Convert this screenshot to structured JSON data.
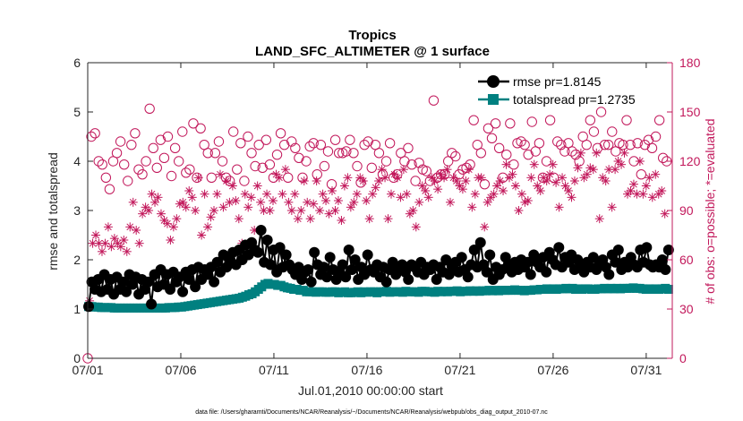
{
  "chart_data": {
    "type": "line",
    "title": "Tropics",
    "subtitle": "LAND_SFC_ALTIMETER @ 1 surface",
    "xlabel": "Jul.01,2010 00:00:00 start",
    "ylabel": "rmse and totalspread",
    "ylabel_right": "# of obs: o=possible; *=evaluated",
    "footer": "data file: /Users/gharamti/Documents/NCAR/Reanalysis/~/Documents/NCAR/Reanalysis/webpub/obs_diag_output_2010-07.nc",
    "xlim": [
      0,
      31.4
    ],
    "ylim": [
      0,
      6
    ],
    "ylim_right": [
      0,
      180
    ],
    "x_tick_values": [
      0,
      5,
      10,
      15,
      20,
      25,
      30
    ],
    "x_tick_labels": [
      "07/01",
      "07/06",
      "07/11",
      "07/16",
      "07/21",
      "07/26",
      "07/31"
    ],
    "y_ticks": [
      "0",
      "1",
      "2",
      "3",
      "4",
      "5",
      "6"
    ],
    "y_ticks_right": [
      "0",
      "30",
      "60",
      "90",
      "120",
      "150",
      "180"
    ],
    "legend_position": "top-right",
    "colors": {
      "rmse": "#000000",
      "spread": "#008080",
      "obs": "#c2185b",
      "axis": "#262626"
    },
    "series": [
      {
        "name": "rmse pr=1.8145",
        "axis": "left",
        "values": [
          1.05,
          1.55,
          1.4,
          1.6,
          1.35,
          1.7,
          1.4,
          1.6,
          1.3,
          1.65,
          1.4,
          1.55,
          1.35,
          1.7,
          1.5,
          1.65,
          1.3,
          1.6,
          1.4,
          1.55,
          1.1,
          1.7,
          1.45,
          1.8,
          1.5,
          1.7,
          1.4,
          1.75,
          1.55,
          1.65,
          1.35,
          1.75,
          1.6,
          1.8,
          1.45,
          1.85,
          1.6,
          1.8,
          1.7,
          1.85,
          1.55,
          1.95,
          1.75,
          2.1,
          1.85,
          2.0,
          2.15,
          1.9,
          2.2,
          2.0,
          2.3,
          2.1,
          2.35,
          2.2,
          2.15,
          2.6,
          1.95,
          2.4,
          1.9,
          2.2,
          1.75,
          2.25,
          1.85,
          2.1,
          1.9,
          1.8,
          1.7,
          1.85,
          1.6,
          1.75,
          1.8,
          1.55,
          2.15,
          1.9,
          1.7,
          1.85,
          1.65,
          2.05,
          1.8,
          1.6,
          1.75,
          1.9,
          1.65,
          2.2,
          1.8,
          2.0,
          1.6,
          1.85,
          1.7,
          2.1,
          1.8,
          1.75,
          1.9,
          1.65,
          1.85,
          1.55,
          1.8,
          1.95,
          1.7,
          1.85,
          1.9,
          1.75,
          1.6,
          1.9,
          1.85,
          1.75,
          1.95,
          1.7,
          1.85,
          1.8,
          1.9,
          1.6,
          1.85,
          1.75,
          2.0,
          1.7,
          1.85,
          1.95,
          1.75,
          2.05,
          1.8,
          1.65,
          1.9,
          2.2,
          1.85,
          2.35,
          1.9,
          1.75,
          2.1,
          1.6,
          1.85,
          1.7,
          1.8,
          2.05,
          1.9,
          1.75,
          1.95,
          1.8,
          2.0,
          1.85,
          1.95,
          1.7,
          2.1,
          1.95,
          1.85,
          2.05,
          1.75,
          2.15,
          2.0,
          1.9,
          2.25,
          1.85,
          2.05,
          1.95,
          2.1,
          1.8,
          2.0,
          1.9,
          1.75,
          1.95,
          1.85,
          2.05,
          1.8,
          1.9,
          2.0,
          1.85,
          1.7,
          2.1,
          1.95,
          2.2,
          1.8,
          1.95,
          1.85,
          2.05,
          1.9,
          1.85,
          2.2,
          1.95,
          2.25,
          1.9,
          1.85,
          1.9,
          1.85,
          2.0,
          1.8,
          2.2
        ]
      },
      {
        "name": "totalspread pr=1.2735",
        "axis": "left",
        "values": [
          1.05,
          1.05,
          1.04,
          1.04,
          1.03,
          1.03,
          1.03,
          1.03,
          1.02,
          1.02,
          1.02,
          1.02,
          1.02,
          1.02,
          1.02,
          1.02,
          1.02,
          1.02,
          1.02,
          1.02,
          1.02,
          1.02,
          1.02,
          1.02,
          1.02,
          1.03,
          1.03,
          1.03,
          1.04,
          1.04,
          1.05,
          1.06,
          1.07,
          1.08,
          1.09,
          1.1,
          1.11,
          1.12,
          1.13,
          1.14,
          1.15,
          1.16,
          1.17,
          1.18,
          1.19,
          1.2,
          1.21,
          1.22,
          1.24,
          1.26,
          1.29,
          1.31,
          1.35,
          1.4,
          1.45,
          1.5,
          1.52,
          1.5,
          1.5,
          1.48,
          1.48,
          1.45,
          1.43,
          1.42,
          1.4,
          1.4,
          1.38,
          1.38,
          1.35,
          1.35,
          1.35,
          1.34,
          1.35,
          1.35,
          1.34,
          1.34,
          1.35,
          1.35,
          1.33,
          1.34,
          1.35,
          1.33,
          1.33,
          1.34,
          1.35,
          1.33,
          1.35,
          1.34,
          1.35,
          1.35,
          1.33,
          1.35,
          1.35,
          1.36,
          1.34,
          1.35,
          1.35,
          1.35,
          1.34,
          1.36,
          1.35,
          1.35,
          1.35,
          1.34,
          1.36,
          1.36,
          1.35,
          1.35,
          1.34,
          1.36,
          1.35,
          1.36,
          1.35,
          1.36,
          1.36,
          1.37,
          1.35,
          1.36,
          1.36,
          1.37,
          1.36,
          1.37,
          1.36,
          1.37,
          1.37,
          1.38,
          1.37,
          1.38,
          1.37,
          1.38,
          1.38,
          1.38,
          1.38,
          1.39,
          1.38,
          1.38,
          1.37,
          1.38,
          1.38,
          1.39,
          1.39,
          1.4,
          1.4,
          1.41,
          1.4,
          1.41,
          1.4,
          1.41,
          1.41,
          1.42,
          1.41,
          1.42,
          1.4,
          1.41,
          1.4,
          1.41,
          1.41,
          1.4,
          1.4,
          1.41,
          1.41,
          1.42,
          1.41,
          1.42,
          1.41,
          1.42,
          1.41,
          1.42,
          1.42,
          1.42,
          1.43,
          1.42,
          1.42,
          1.41,
          1.4,
          1.41,
          1.4,
          1.41,
          1.4,
          1.41,
          1.42,
          1.4
        ]
      },
      {
        "name": "possible",
        "axis": "right",
        "marker": "circle",
        "values": [
          0,
          135,
          137,
          120,
          118,
          110,
          103,
          120,
          125,
          132,
          118,
          108,
          130,
          137,
          115,
          112,
          120,
          152,
          128,
          116,
          133,
          122,
          135,
          111,
          128,
          120,
          138,
          113,
          115,
          143,
          110,
          140,
          130,
          125,
          110,
          125,
          132,
          120,
          110,
          108,
          138,
          115,
          131,
          108,
          135,
          125,
          117,
          130,
          116,
          133,
          118,
          110,
          124,
          137,
          130,
          110,
          132,
          128,
          122,
          110,
          120,
          129,
          131,
          112,
          130,
          117,
          126,
          106,
          133,
          125,
          125,
          126,
          133,
          125,
          117,
          107,
          130,
          132,
          116,
          130,
          125,
          112,
          120,
          131,
          110,
          112,
          125,
          120,
          128,
          118,
          108,
          119,
          115,
          114,
          108,
          157,
          110,
          112,
          112,
          120,
          125,
          123,
          112,
          115,
          116,
          118,
          145,
          130,
          125,
          106,
          140,
          134,
          143,
          128,
          110,
          124,
          143,
          118,
          131,
          132,
          130,
          124,
          144,
          126,
          131,
          110,
          120,
          145,
          110,
          132,
          130,
          126,
          131,
          126,
          124,
          120,
          135,
          130,
          145,
          138,
          128,
          150,
          130,
          130,
          138,
          126,
          131,
          130,
          145,
          130,
          120,
          131,
          112,
          130,
          133,
          128,
          135,
          145,
          122,
          120
        ]
      },
      {
        "name": "evaluated",
        "axis": "right",
        "marker": "asterisk",
        "values": [
          35,
          70,
          75,
          70,
          65,
          70,
          80,
          68,
          73,
          70,
          68,
          72,
          65,
          80,
          95,
          78,
          70,
          88,
          92,
          90,
          100,
          95,
          98,
          88,
          84,
          82,
          72,
          80,
          85,
          94,
          95,
          92,
          102,
          98,
          90,
          110,
          75,
          100,
          80,
          86,
          90,
          100,
          112,
          92,
          108,
          95,
          105,
          96,
          85,
          70,
          100,
          92,
          98,
          78,
          105,
          95,
          90,
          100,
          90,
          96,
          112,
          110,
          100,
          115,
          95,
          90,
          100,
          85,
          90,
          108,
          95,
          85,
          94,
          108,
          90,
          100,
          96,
          88,
          102,
          90,
          96,
          84,
          105,
          110,
          92,
          95,
          100,
          110,
          108,
          96,
          85,
          100,
          104,
          108,
          115,
          110,
          85,
          100,
          112,
          110,
          98,
          115,
          100,
          88,
          90,
          80,
          95,
          105,
          102,
          98,
          110,
          108,
          103,
          112,
          110,
          115,
          95,
          110,
          108,
          105,
          103,
          108,
          115,
          92,
          100,
          110,
          110,
          80,
          95,
          98,
          100,
          105,
          108,
          102,
          118,
          110,
          112,
          105,
          90,
          100,
          95,
          96,
          110,
          118,
          105,
          102,
          110,
          108,
          112,
          118,
          107,
          92,
          110,
          105,
          102,
          98,
          108,
          116,
          125,
          110,
          112,
          116,
          115,
          125,
          85,
          110,
          108,
          115,
          92,
          115,
          120,
          118,
          125,
          100,
          102,
          106,
          100,
          120,
          100,
          105,
          110,
          98,
          112,
          100,
          102,
          88
        ]
      }
    ]
  }
}
